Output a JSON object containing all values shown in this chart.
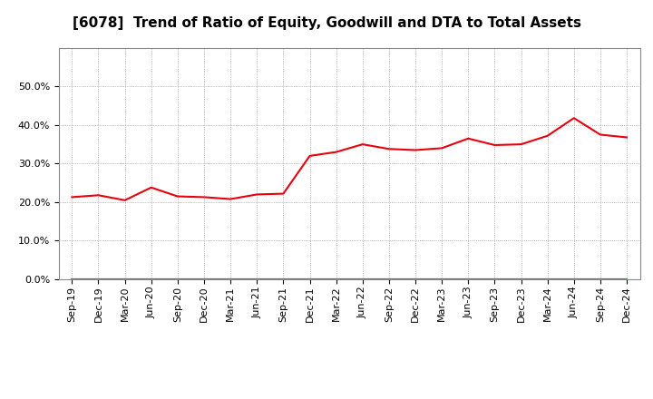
{
  "title": "[6078]  Trend of Ratio of Equity, Goodwill and DTA to Total Assets",
  "x_labels": [
    "Sep-19",
    "Dec-19",
    "Mar-20",
    "Jun-20",
    "Sep-20",
    "Dec-20",
    "Mar-21",
    "Jun-21",
    "Sep-21",
    "Dec-21",
    "Mar-22",
    "Jun-22",
    "Sep-22",
    "Dec-22",
    "Mar-23",
    "Jun-23",
    "Sep-23",
    "Dec-23",
    "Mar-24",
    "Jun-24",
    "Sep-24",
    "Dec-24"
  ],
  "equity": [
    0.213,
    0.218,
    0.205,
    0.238,
    0.215,
    0.213,
    0.208,
    0.22,
    0.222,
    0.32,
    0.33,
    0.35,
    0.338,
    0.335,
    0.34,
    0.365,
    0.348,
    0.35,
    0.372,
    0.418,
    0.375,
    0.368
  ],
  "goodwill": [
    0.0,
    0.0,
    0.0,
    0.0,
    0.0,
    0.0,
    0.0,
    0.0,
    0.0,
    0.0,
    0.0,
    0.0,
    0.0,
    0.0,
    0.0,
    0.0,
    0.0,
    0.0,
    0.0,
    0.0,
    0.0,
    0.0
  ],
  "dta": [
    0.0,
    0.0,
    0.0,
    0.0,
    0.0,
    0.0,
    0.0,
    0.0,
    0.0,
    0.0,
    0.0,
    0.0,
    0.0,
    0.0,
    0.0,
    0.0,
    0.0,
    0.0,
    0.0,
    0.0,
    0.0,
    0.0
  ],
  "equity_color": "#e8000d",
  "goodwill_color": "#1e40af",
  "dta_color": "#16a34a",
  "ylim": [
    0.0,
    0.6
  ],
  "yticks": [
    0.0,
    0.1,
    0.2,
    0.3,
    0.4,
    0.5
  ],
  "bg_color": "#ffffff",
  "plot_bg_color": "#ffffff",
  "grid_color": "#999999",
  "title_fontsize": 11,
  "axis_fontsize": 8,
  "legend_fontsize": 9
}
